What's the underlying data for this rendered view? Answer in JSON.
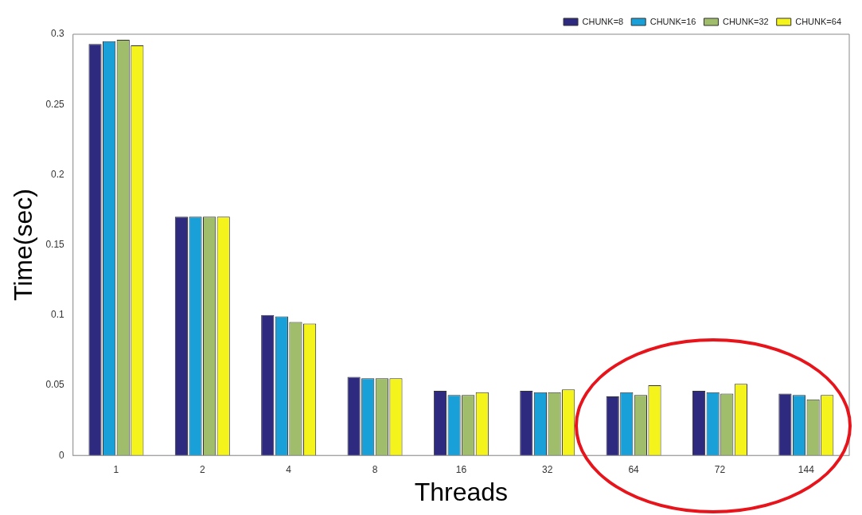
{
  "chart_data": {
    "type": "bar",
    "xlabel": "Threads",
    "ylabel": "Time(sec)",
    "categories": [
      "1",
      "2",
      "4",
      "8",
      "16",
      "32",
      "64",
      "72",
      "144"
    ],
    "series": [
      {
        "name": "CHUNK=8",
        "color": "#2e2a80",
        "values": [
          0.293,
          0.17,
          0.1,
          0.056,
          0.046,
          0.046,
          0.042,
          0.046,
          0.044
        ]
      },
      {
        "name": "CHUNK=16",
        "color": "#1aa0d8",
        "values": [
          0.295,
          0.17,
          0.099,
          0.055,
          0.043,
          0.045,
          0.045,
          0.045,
          0.043
        ]
      },
      {
        "name": "CHUNK=32",
        "color": "#9fbd6b",
        "values": [
          0.296,
          0.17,
          0.095,
          0.055,
          0.043,
          0.045,
          0.043,
          0.044,
          0.04
        ]
      },
      {
        "name": "CHUNK=64",
        "color": "#f4f41c",
        "values": [
          0.292,
          0.17,
          0.094,
          0.055,
          0.045,
          0.047,
          0.05,
          0.051,
          0.043
        ]
      }
    ],
    "ylim": [
      0,
      0.3
    ],
    "yticks": [
      0,
      0.05,
      0.1,
      0.15,
      0.2,
      0.25,
      0.3
    ],
    "grid": false,
    "legend": "top right"
  }
}
